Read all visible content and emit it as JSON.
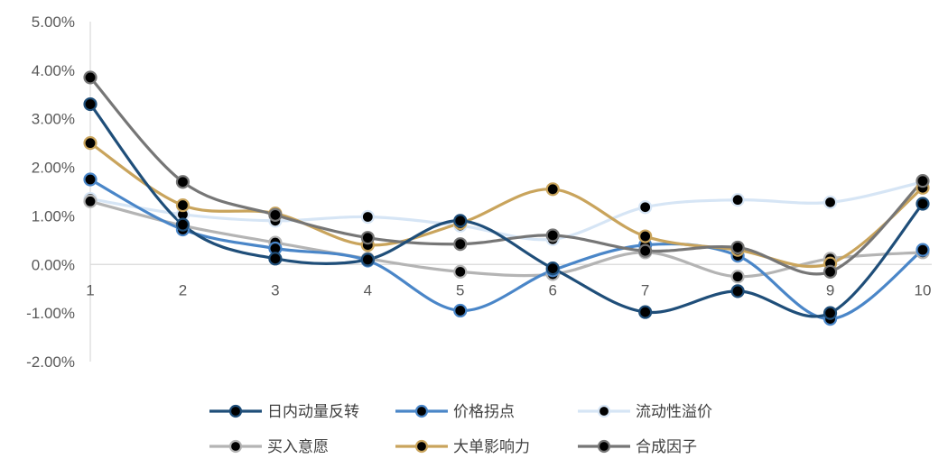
{
  "chart_data": {
    "type": "line",
    "title": "",
    "xlabel": "",
    "ylabel": "",
    "categories": [
      "1",
      "2",
      "3",
      "4",
      "5",
      "6",
      "7",
      "8",
      "9",
      "10"
    ],
    "y_ticks": [
      "5.00%",
      "4.00%",
      "3.00%",
      "2.00%",
      "1.00%",
      "0.00%",
      "-1.00%",
      "-2.00%"
    ],
    "ylim": [
      -2,
      5
    ],
    "grid": false,
    "smooth": true,
    "legend_position": "bottom",
    "series": [
      {
        "name": "日内动量反转",
        "color": "#1f4e79",
        "values": [
          3.3,
          0.82,
          0.12,
          0.1,
          0.9,
          -0.08,
          -0.98,
          -0.55,
          -1.0,
          1.25
        ]
      },
      {
        "name": "价格拐点",
        "color": "#4a86c8",
        "values": [
          1.75,
          0.72,
          0.33,
          0.08,
          -0.95,
          -0.12,
          0.4,
          0.18,
          -1.12,
          0.3
        ]
      },
      {
        "name": "流动性溢价",
        "color": "#d6e5f5",
        "values": [
          1.35,
          1.03,
          0.9,
          0.98,
          0.8,
          0.52,
          1.18,
          1.33,
          1.28,
          1.7
        ]
      },
      {
        "name": "买入意愿",
        "color": "#b4b4b4",
        "values": [
          1.3,
          0.8,
          0.45,
          0.12,
          -0.15,
          -0.2,
          0.25,
          -0.25,
          0.12,
          0.25
        ]
      },
      {
        "name": "大单影响力",
        "color": "#c9a45c",
        "values": [
          2.5,
          1.22,
          1.05,
          0.4,
          0.85,
          1.55,
          0.58,
          0.3,
          0.02,
          1.58
        ]
      },
      {
        "name": "合成因子",
        "color": "#767676",
        "values": [
          3.85,
          1.7,
          1.02,
          0.55,
          0.42,
          0.6,
          0.28,
          0.35,
          -0.15,
          1.72
        ]
      }
    ]
  }
}
